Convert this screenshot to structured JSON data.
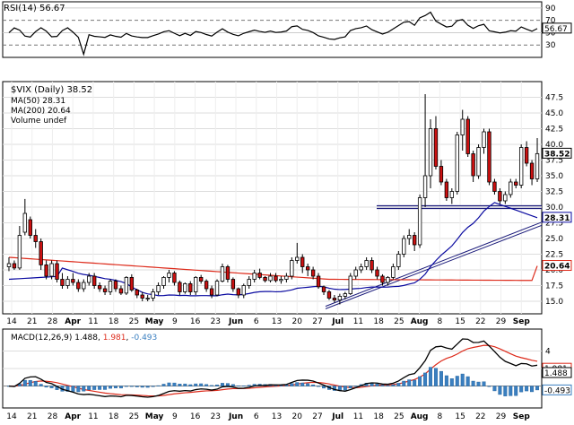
{
  "chart_data": {
    "type": "candlestick",
    "symbol_label": "$VIX (Daily)",
    "last_value": "38.52",
    "main_axis": {
      "ylim": [
        13,
        50
      ],
      "ticks": [
        "15.0",
        "17.5",
        "20.0",
        "22.5",
        "25.0",
        "27.5",
        "30.0",
        "32.5",
        "35.0",
        "37.5",
        "40.0",
        "42.5",
        "45.0",
        "47.5"
      ]
    },
    "x_labels": [
      "14",
      "21",
      "28",
      "Apr",
      "11",
      "18",
      "25",
      "May",
      "9",
      "16",
      "23",
      "Jun",
      "6",
      "13",
      "20",
      "27",
      "Jul",
      "11",
      "18",
      "25",
      "Aug",
      "8",
      "15",
      "22",
      "29",
      "Sep"
    ],
    "candles": [
      {
        "o": 20.5,
        "h": 22.0,
        "l": 19.8,
        "c": 21.0
      },
      {
        "o": 21.0,
        "h": 21.5,
        "l": 20.0,
        "c": 20.3
      },
      {
        "o": 20.3,
        "h": 27.0,
        "l": 20.0,
        "c": 25.5
      },
      {
        "o": 26.0,
        "h": 31.3,
        "l": 25.5,
        "c": 29.0
      },
      {
        "o": 28.0,
        "h": 28.5,
        "l": 25.0,
        "c": 25.5
      },
      {
        "o": 25.5,
        "h": 26.5,
        "l": 23.5,
        "c": 24.5
      },
      {
        "o": 24.5,
        "h": 25.0,
        "l": 20.0,
        "c": 20.8
      },
      {
        "o": 20.8,
        "h": 21.5,
        "l": 18.5,
        "c": 19.0
      },
      {
        "o": 19.0,
        "h": 21.5,
        "l": 18.5,
        "c": 21.0
      },
      {
        "o": 21.0,
        "h": 21.5,
        "l": 18.0,
        "c": 18.5
      },
      {
        "o": 18.5,
        "h": 19.5,
        "l": 17.0,
        "c": 17.5
      },
      {
        "o": 17.5,
        "h": 19.0,
        "l": 17.0,
        "c": 18.5
      },
      {
        "o": 18.5,
        "h": 19.5,
        "l": 17.5,
        "c": 18.0
      },
      {
        "o": 18.0,
        "h": 18.5,
        "l": 16.5,
        "c": 17.0
      },
      {
        "o": 17.0,
        "h": 18.5,
        "l": 16.5,
        "c": 18.0
      },
      {
        "o": 18.0,
        "h": 19.5,
        "l": 17.5,
        "c": 19.0
      },
      {
        "o": 19.0,
        "h": 19.5,
        "l": 17.0,
        "c": 17.5
      },
      {
        "o": 17.5,
        "h": 18.0,
        "l": 16.5,
        "c": 17.0
      },
      {
        "o": 17.0,
        "h": 17.5,
        "l": 16.0,
        "c": 16.5
      },
      {
        "o": 16.5,
        "h": 18.5,
        "l": 16.0,
        "c": 18.2
      },
      {
        "o": 18.2,
        "h": 18.5,
        "l": 16.5,
        "c": 17.0
      },
      {
        "o": 17.0,
        "h": 17.5,
        "l": 16.0,
        "c": 16.3
      },
      {
        "o": 16.3,
        "h": 19.0,
        "l": 16.0,
        "c": 18.8
      },
      {
        "o": 18.8,
        "h": 19.3,
        "l": 16.5,
        "c": 16.8
      },
      {
        "o": 16.8,
        "h": 17.0,
        "l": 15.5,
        "c": 16.0
      },
      {
        "o": 16.0,
        "h": 16.5,
        "l": 15.0,
        "c": 15.5
      },
      {
        "o": 15.5,
        "h": 16.0,
        "l": 15.0,
        "c": 15.5
      },
      {
        "o": 15.5,
        "h": 17.0,
        "l": 15.0,
        "c": 16.5
      },
      {
        "o": 16.5,
        "h": 18.0,
        "l": 16.0,
        "c": 17.5
      },
      {
        "o": 17.5,
        "h": 19.0,
        "l": 17.0,
        "c": 18.8
      },
      {
        "o": 18.8,
        "h": 20.0,
        "l": 18.0,
        "c": 19.5
      },
      {
        "o": 19.5,
        "h": 19.8,
        "l": 17.5,
        "c": 18.0
      },
      {
        "o": 18.0,
        "h": 18.3,
        "l": 16.0,
        "c": 16.5
      },
      {
        "o": 16.5,
        "h": 18.0,
        "l": 16.2,
        "c": 17.8
      },
      {
        "o": 17.8,
        "h": 18.2,
        "l": 16.0,
        "c": 16.5
      },
      {
        "o": 16.5,
        "h": 19.0,
        "l": 16.0,
        "c": 18.8
      },
      {
        "o": 18.8,
        "h": 19.2,
        "l": 17.8,
        "c": 18.2
      },
      {
        "o": 18.2,
        "h": 18.5,
        "l": 16.5,
        "c": 17.0
      },
      {
        "o": 17.0,
        "h": 17.5,
        "l": 15.5,
        "c": 16.0
      },
      {
        "o": 16.0,
        "h": 18.5,
        "l": 15.8,
        "c": 18.2
      },
      {
        "o": 18.2,
        "h": 21.0,
        "l": 18.0,
        "c": 20.5
      },
      {
        "o": 20.5,
        "h": 20.8,
        "l": 18.0,
        "c": 18.5
      },
      {
        "o": 18.5,
        "h": 18.8,
        "l": 16.5,
        "c": 17.0
      },
      {
        "o": 17.0,
        "h": 17.2,
        "l": 15.5,
        "c": 16.0
      },
      {
        "o": 16.0,
        "h": 17.8,
        "l": 15.5,
        "c": 17.5
      },
      {
        "o": 17.5,
        "h": 19.0,
        "l": 17.0,
        "c": 18.5
      },
      {
        "o": 18.5,
        "h": 20.0,
        "l": 18.0,
        "c": 19.5
      },
      {
        "o": 19.5,
        "h": 20.2,
        "l": 18.5,
        "c": 18.8
      },
      {
        "o": 18.8,
        "h": 19.0,
        "l": 18.0,
        "c": 18.3
      },
      {
        "o": 18.3,
        "h": 19.5,
        "l": 18.0,
        "c": 19.0
      },
      {
        "o": 19.0,
        "h": 19.5,
        "l": 18.0,
        "c": 18.3
      },
      {
        "o": 18.3,
        "h": 19.0,
        "l": 17.8,
        "c": 18.5
      },
      {
        "o": 18.5,
        "h": 19.5,
        "l": 18.0,
        "c": 19.0
      },
      {
        "o": 19.0,
        "h": 22.0,
        "l": 18.5,
        "c": 21.5
      },
      {
        "o": 21.5,
        "h": 24.3,
        "l": 21.0,
        "c": 22.0
      },
      {
        "o": 22.0,
        "h": 22.5,
        "l": 19.5,
        "c": 20.5
      },
      {
        "o": 20.5,
        "h": 21.0,
        "l": 19.0,
        "c": 20.0
      },
      {
        "o": 20.0,
        "h": 20.5,
        "l": 18.5,
        "c": 19.0
      },
      {
        "o": 19.0,
        "h": 19.5,
        "l": 17.0,
        "c": 17.3
      },
      {
        "o": 17.3,
        "h": 17.5,
        "l": 16.0,
        "c": 16.5
      },
      {
        "o": 16.5,
        "h": 16.8,
        "l": 15.2,
        "c": 15.5
      },
      {
        "o": 15.5,
        "h": 16.0,
        "l": 14.8,
        "c": 15.2
      },
      {
        "o": 15.2,
        "h": 16.2,
        "l": 14.5,
        "c": 15.8
      },
      {
        "o": 15.8,
        "h": 16.5,
        "l": 15.3,
        "c": 16.2
      },
      {
        "o": 16.2,
        "h": 19.5,
        "l": 16.0,
        "c": 19.0
      },
      {
        "o": 19.0,
        "h": 20.5,
        "l": 18.5,
        "c": 20.0
      },
      {
        "o": 20.0,
        "h": 21.0,
        "l": 19.5,
        "c": 20.5
      },
      {
        "o": 20.5,
        "h": 22.0,
        "l": 20.0,
        "c": 21.5
      },
      {
        "o": 21.5,
        "h": 22.0,
        "l": 19.5,
        "c": 20.0
      },
      {
        "o": 20.0,
        "h": 20.5,
        "l": 18.5,
        "c": 19.0
      },
      {
        "o": 19.0,
        "h": 19.3,
        "l": 17.5,
        "c": 18.0
      },
      {
        "o": 18.0,
        "h": 19.0,
        "l": 17.5,
        "c": 18.8
      },
      {
        "o": 18.8,
        "h": 21.0,
        "l": 18.5,
        "c": 20.5
      },
      {
        "o": 20.5,
        "h": 23.0,
        "l": 20.0,
        "c": 22.5
      },
      {
        "o": 22.5,
        "h": 25.5,
        "l": 22.0,
        "c": 25.0
      },
      {
        "o": 25.0,
        "h": 26.5,
        "l": 24.0,
        "c": 25.5
      },
      {
        "o": 25.5,
        "h": 26.0,
        "l": 23.0,
        "c": 24.0
      },
      {
        "o": 24.0,
        "h": 32.0,
        "l": 23.5,
        "c": 31.5
      },
      {
        "o": 31.5,
        "h": 48.0,
        "l": 30.0,
        "c": 35.0
      },
      {
        "o": 35.0,
        "h": 44.0,
        "l": 33.0,
        "c": 42.5
      },
      {
        "o": 42.5,
        "h": 44.5,
        "l": 36.0,
        "c": 36.5
      },
      {
        "o": 36.5,
        "h": 37.5,
        "l": 33.5,
        "c": 34.0
      },
      {
        "o": 34.0,
        "h": 34.5,
        "l": 31.0,
        "c": 31.5
      },
      {
        "o": 31.5,
        "h": 33.0,
        "l": 30.5,
        "c": 32.5
      },
      {
        "o": 32.5,
        "h": 42.0,
        "l": 32.0,
        "c": 41.5
      },
      {
        "o": 41.5,
        "h": 45.5,
        "l": 39.0,
        "c": 44.0
      },
      {
        "o": 44.0,
        "h": 44.5,
        "l": 38.0,
        "c": 38.5
      },
      {
        "o": 38.5,
        "h": 39.0,
        "l": 34.0,
        "c": 35.0
      },
      {
        "o": 35.0,
        "h": 40.0,
        "l": 34.5,
        "c": 39.5
      },
      {
        "o": 39.5,
        "h": 42.5,
        "l": 38.5,
        "c": 42.0
      },
      {
        "o": 42.0,
        "h": 42.5,
        "l": 33.5,
        "c": 34.0
      },
      {
        "o": 34.0,
        "h": 34.5,
        "l": 32.0,
        "c": 32.5
      },
      {
        "o": 32.5,
        "h": 33.0,
        "l": 30.5,
        "c": 31.0
      },
      {
        "o": 31.0,
        "h": 32.5,
        "l": 30.5,
        "c": 32.0
      },
      {
        "o": 32.0,
        "h": 34.5,
        "l": 31.5,
        "c": 34.0
      },
      {
        "o": 34.0,
        "h": 34.5,
        "l": 33.0,
        "c": 33.5
      },
      {
        "o": 33.5,
        "h": 40.0,
        "l": 33.0,
        "c": 39.5
      },
      {
        "o": 39.5,
        "h": 40.5,
        "l": 36.5,
        "c": 37.0
      },
      {
        "o": 37.0,
        "h": 37.5,
        "l": 33.5,
        "c": 34.5
      },
      {
        "o": 34.5,
        "h": 41.0,
        "l": 34.0,
        "c": 38.52
      }
    ],
    "ma50": {
      "label": "MA(50)",
      "value": "28.31",
      "color": "#0a0aa0"
    },
    "ma200": {
      "label": "MA(200)",
      "value": "20.64",
      "color": "#dd2a1a"
    },
    "volume_label": "Volume undef",
    "support_line": 30.0,
    "rsi": {
      "label": "RSI(14)",
      "value": "56.67",
      "ticks": [
        "30",
        "50",
        "70",
        "90"
      ],
      "ylim": [
        10,
        100
      ]
    },
    "macd": {
      "label": "MACD(12,26,9)",
      "macd": "1.488",
      "signal": "1.981",
      "hist": "-0.493",
      "ticks": [
        "4",
        "2"
      ],
      "ylim": [
        -2.5,
        6.5
      ],
      "macd_color": "#000000",
      "signal_color": "#dd2a1a",
      "hist_color": "#3a7fc0"
    }
  }
}
